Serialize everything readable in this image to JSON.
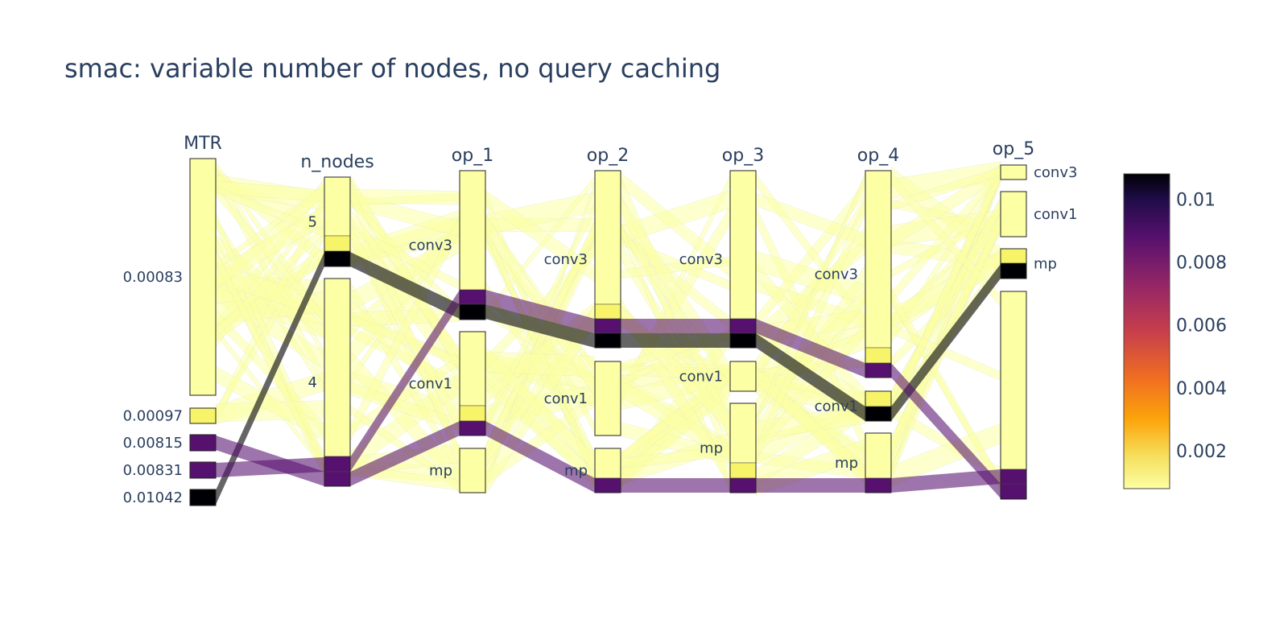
{
  "chart_data": {
    "type": "parallel_categories",
    "title": "smac: variable number of nodes, no query caching",
    "dimensions": [
      {
        "name": "MTR",
        "categories": [
          "0.00083",
          "0.00097",
          "0.00815",
          "0.00831",
          "0.01042"
        ],
        "show_labels": true
      },
      {
        "name": "n_nodes",
        "categories": [
          "5",
          "4"
        ],
        "show_labels": true
      },
      {
        "name": "op_1",
        "categories": [
          "conv3",
          "conv1",
          "mp"
        ],
        "show_labels": true
      },
      {
        "name": "op_2",
        "categories": [
          "conv3",
          "conv1",
          "mp"
        ],
        "show_labels": true
      },
      {
        "name": "op_3",
        "categories": [
          "conv3",
          "conv1",
          "mp"
        ],
        "show_labels": true
      },
      {
        "name": "op_4",
        "categories": [
          "conv3",
          "conv1",
          "mp"
        ],
        "show_labels": true
      },
      {
        "name": "op_5",
        "categories": [
          "conv3",
          "conv1",
          "mp",
          ""
        ],
        "show_labels": true
      }
    ],
    "highlighted_paths": [
      {
        "mtr": 0.01042,
        "path": [
          "0.01042",
          "5",
          "conv3",
          "conv3",
          "conv3",
          "conv1",
          "mp"
        ]
      },
      {
        "mtr": 0.00831,
        "path": [
          "0.00831",
          "4",
          "conv3",
          "conv3",
          "conv3",
          "conv3",
          ""
        ]
      },
      {
        "mtr": 0.00815,
        "path": [
          "0.00815",
          "4",
          "conv1",
          "mp",
          "mp",
          "mp",
          ""
        ]
      }
    ],
    "colorbar": {
      "colorscale": "inferno_reversed",
      "range": [
        0.0008,
        0.0108
      ],
      "tick_values": [
        0.01,
        0.008,
        0.006,
        0.004,
        0.002
      ],
      "tick_labels": [
        "0.01",
        "0.008",
        "0.006",
        "0.004",
        "0.002"
      ]
    },
    "colors": {
      "low": "#fcffa4",
      "mid_high": "#56106e",
      "high": "#000004",
      "band_low": "#f7f46a"
    }
  }
}
